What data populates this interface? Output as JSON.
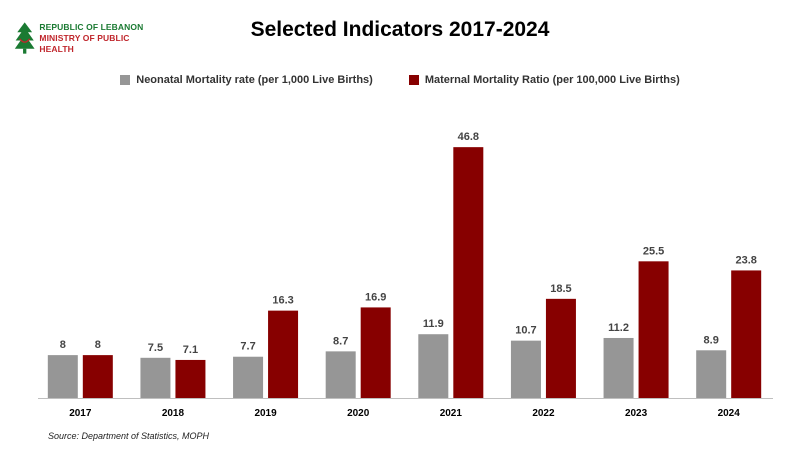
{
  "logo": {
    "line1": "REPUBLIC OF LEBANON",
    "line2": "MINISTRY OF PUBLIC HEALTH"
  },
  "source": "Source: Department of Statistics, MOPH",
  "colors": {
    "neonatal": "#969696",
    "maternal": "#870000"
  },
  "chart_data": {
    "type": "bar",
    "title": "Selected Indicators 2017-2024",
    "categories": [
      "2017",
      "2018",
      "2019",
      "2020",
      "2021",
      "2022",
      "2023",
      "2024"
    ],
    "series": [
      {
        "name": "Neonatal Mortality rate (per 1,000 Live Births)",
        "values": [
          8,
          7.5,
          7.7,
          8.7,
          11.9,
          10.7,
          11.2,
          8.9
        ],
        "labels": [
          "8",
          "7.5",
          "7.7",
          "8.7",
          "11.9",
          "10.7",
          "11.2",
          "8.9"
        ]
      },
      {
        "name": "Maternal Mortality Ratio (per 100,000 Live Births)",
        "values": [
          8,
          7.1,
          16.3,
          16.9,
          46.8,
          18.5,
          25.5,
          23.8
        ],
        "labels": [
          "8",
          "7.1",
          "16.3",
          "16.9",
          "46.8",
          "18.5",
          "25.5",
          "23.8"
        ]
      }
    ],
    "xlabel": "",
    "ylabel": "",
    "ylim": [
      0,
      50
    ],
    "grid": false,
    "legend_position": "top"
  }
}
